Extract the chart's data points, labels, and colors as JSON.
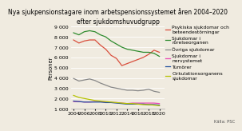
{
  "title1": "Nya sjukpensionstagare inom arbetspensionssystemet åren 2004–2020",
  "title2": "efter sjukdomshuvudgrupp",
  "ylabel": "Personer",
  "source": "Källa: PSC",
  "years": [
    2004,
    2005,
    2006,
    2007,
    2008,
    2009,
    2010,
    2011,
    2012,
    2013,
    2014,
    2015,
    2016,
    2017,
    2018,
    2019,
    2020
  ],
  "series": {
    "Psykiska sjukdomar och\nbeteendestörningar": {
      "color": "#d94f3d",
      "data": [
        7700,
        7400,
        7600,
        7700,
        7700,
        7200,
        6800,
        6200,
        5900,
        5200,
        5400,
        5600,
        5800,
        6000,
        6300,
        6700,
        6500
      ]
    },
    "Sjukdomar i\nrörelseorganen": {
      "color": "#2e8b2e",
      "data": [
        8400,
        8200,
        8500,
        8600,
        8500,
        8200,
        8000,
        7600,
        7300,
        7000,
        6800,
        6700,
        6600,
        6500,
        6500,
        6400,
        6100
      ]
    },
    "Övriga sjukdomar": {
      "color": "#888888",
      "data": [
        3950,
        3700,
        3800,
        3900,
        3750,
        3500,
        3300,
        3100,
        3000,
        2900,
        2800,
        2800,
        2750,
        2800,
        2900,
        2700,
        2600
      ]
    },
    "Sjukdomar i\nnervystemet": {
      "color": "#e84bb5",
      "data": [
        1700,
        1700,
        1650,
        1650,
        1700,
        1700,
        1650,
        1600,
        1600,
        1550,
        1500,
        1550,
        1550,
        1550,
        1550,
        1550,
        1500
      ]
    },
    "Tumörer": {
      "color": "#1f4e9e",
      "data": [
        1750,
        1700,
        1650,
        1650,
        1650,
        1650,
        1600,
        1600,
        1550,
        1500,
        1450,
        1450,
        1450,
        1450,
        1400,
        1400,
        1350
      ]
    },
    "Cirkulationsorganens\nsjukdomar": {
      "color": "#b5c200",
      "data": [
        2300,
        2100,
        2000,
        1900,
        1800,
        1750,
        1700,
        1650,
        1600,
        1550,
        1500,
        1500,
        1450,
        1400,
        1400,
        1350,
        1300
      ]
    }
  },
  "ylim": [
    1000,
    9000
  ],
  "yticks": [
    1000,
    2000,
    3000,
    4000,
    5000,
    6000,
    7000,
    8000,
    9000
  ],
  "xticks": [
    2004,
    2006,
    2008,
    2010,
    2012,
    2014,
    2016,
    2018,
    2020
  ],
  "bg_color": "#f0ebe0",
  "title_fontsize": 5.5,
  "tick_fontsize": 4.5,
  "legend_fontsize": 4.3,
  "label_fontsize": 4.8
}
